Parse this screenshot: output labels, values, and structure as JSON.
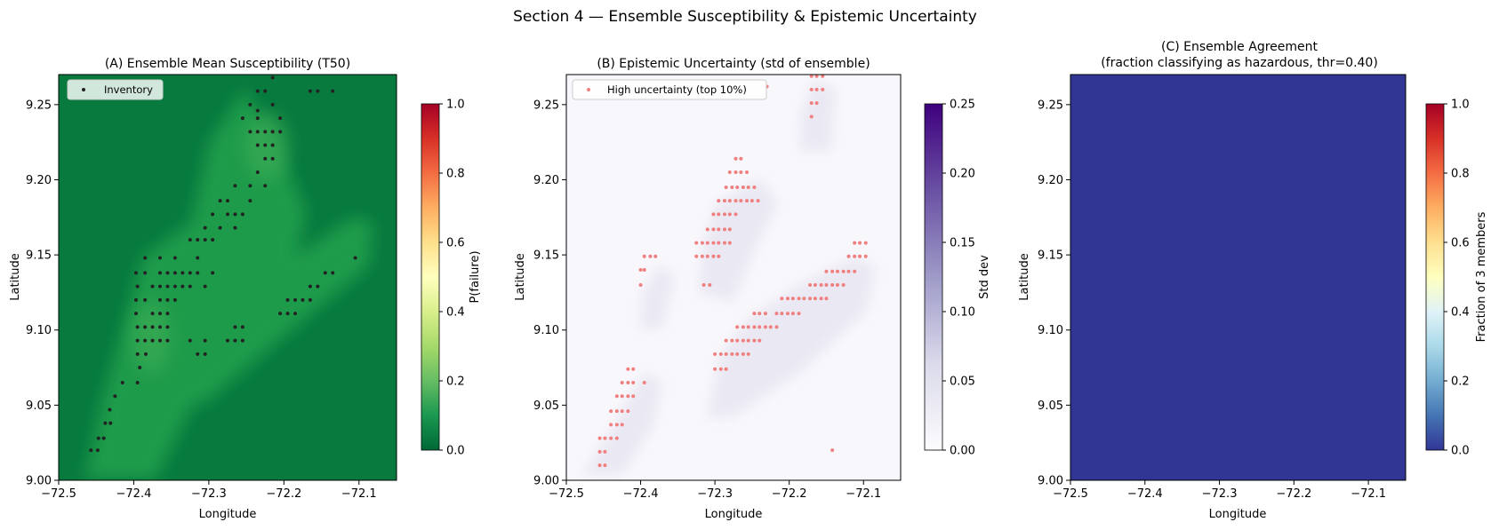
{
  "suptitle": "Section 4 — Ensemble Susceptibility & Epistemic Uncertainty",
  "chart_data": [
    {
      "panel": "A",
      "type": "heatmap",
      "title": "(A) Ensemble Mean Susceptibility (T50)",
      "xlabel": "Longitude",
      "ylabel": "Latitude",
      "xlim": [
        -72.5,
        -72.05
      ],
      "ylim": [
        9.0,
        9.27
      ],
      "xticks": [
        "−72.5",
        "−72.4",
        "−72.3",
        "−72.2",
        "−72.1"
      ],
      "xtick_values": [
        -72.5,
        -72.4,
        -72.3,
        -72.2,
        -72.1
      ],
      "yticks": [
        "9.00",
        "9.05",
        "9.10",
        "9.15",
        "9.20",
        "9.25"
      ],
      "ytick_values": [
        9.0,
        9.05,
        9.1,
        9.15,
        9.2,
        9.25
      ],
      "colormap": "RdYlGn_r",
      "colorbar": {
        "label": "P(failure)",
        "range": [
          0.0,
          1.0
        ],
        "ticks": [
          "0.0",
          "0.2",
          "0.4",
          "0.6",
          "0.8",
          "1.0"
        ]
      },
      "legend": {
        "label": "Inventory",
        "position": "top-left",
        "marker_color": "#222222"
      },
      "surface_range": [
        0.0,
        0.22
      ],
      "surface_description": "low susceptibility background with elevated ridges along NE-trending bands",
      "points_color": "#222222",
      "points": [
        [
          -72.457,
          9.02
        ],
        [
          -72.448,
          9.02
        ],
        [
          -72.447,
          9.028
        ],
        [
          -72.44,
          9.028
        ],
        [
          -72.438,
          9.038
        ],
        [
          -72.431,
          9.038
        ],
        [
          -72.432,
          9.047
        ],
        [
          -72.425,
          9.056
        ],
        [
          -72.415,
          9.065
        ],
        [
          -72.395,
          9.065
        ],
        [
          -72.392,
          9.075
        ],
        [
          -72.395,
          9.084
        ],
        [
          -72.384,
          9.084
        ],
        [
          -72.395,
          9.093
        ],
        [
          -72.385,
          9.093
        ],
        [
          -72.375,
          9.093
        ],
        [
          -72.365,
          9.093
        ],
        [
          -72.355,
          9.093
        ],
        [
          -72.395,
          9.102
        ],
        [
          -72.385,
          9.102
        ],
        [
          -72.375,
          9.102
        ],
        [
          -72.365,
          9.102
        ],
        [
          -72.355,
          9.102
        ],
        [
          -72.397,
          9.111
        ],
        [
          -72.375,
          9.111
        ],
        [
          -72.365,
          9.111
        ],
        [
          -72.355,
          9.111
        ],
        [
          -72.397,
          9.12
        ],
        [
          -72.385,
          9.12
        ],
        [
          -72.365,
          9.12
        ],
        [
          -72.355,
          9.12
        ],
        [
          -72.345,
          9.12
        ],
        [
          -72.395,
          9.129
        ],
        [
          -72.375,
          9.129
        ],
        [
          -72.365,
          9.129
        ],
        [
          -72.355,
          9.129
        ],
        [
          -72.345,
          9.129
        ],
        [
          -72.335,
          9.129
        ],
        [
          -72.325,
          9.129
        ],
        [
          -72.305,
          9.129
        ],
        [
          -72.397,
          9.138
        ],
        [
          -72.385,
          9.138
        ],
        [
          -72.365,
          9.138
        ],
        [
          -72.355,
          9.138
        ],
        [
          -72.345,
          9.138
        ],
        [
          -72.335,
          9.138
        ],
        [
          -72.325,
          9.138
        ],
        [
          -72.315,
          9.138
        ],
        [
          -72.295,
          9.138
        ],
        [
          -72.385,
          9.148
        ],
        [
          -72.365,
          9.148
        ],
        [
          -72.345,
          9.148
        ],
        [
          -72.315,
          9.148
        ],
        [
          -72.325,
          9.16
        ],
        [
          -72.315,
          9.16
        ],
        [
          -72.305,
          9.16
        ],
        [
          -72.295,
          9.16
        ],
        [
          -72.305,
          9.168
        ],
        [
          -72.285,
          9.168
        ],
        [
          -72.265,
          9.168
        ],
        [
          -72.295,
          9.177
        ],
        [
          -72.275,
          9.177
        ],
        [
          -72.265,
          9.177
        ],
        [
          -72.255,
          9.177
        ],
        [
          -72.285,
          9.186
        ],
        [
          -72.275,
          9.186
        ],
        [
          -72.245,
          9.186
        ],
        [
          -72.265,
          9.196
        ],
        [
          -72.245,
          9.196
        ],
        [
          -72.225,
          9.196
        ],
        [
          -72.235,
          9.205
        ],
        [
          -72.225,
          9.214
        ],
        [
          -72.215,
          9.214
        ],
        [
          -72.235,
          9.223
        ],
        [
          -72.225,
          9.223
        ],
        [
          -72.215,
          9.223
        ],
        [
          -72.245,
          9.232
        ],
        [
          -72.235,
          9.232
        ],
        [
          -72.225,
          9.232
        ],
        [
          -72.215,
          9.232
        ],
        [
          -72.205,
          9.232
        ],
        [
          -72.255,
          9.241
        ],
        [
          -72.235,
          9.241
        ],
        [
          -72.205,
          9.241
        ],
        [
          -72.245,
          9.25
        ],
        [
          -72.215,
          9.25
        ],
        [
          -72.235,
          9.259
        ],
        [
          -72.225,
          9.259
        ],
        [
          -72.165,
          9.259
        ],
        [
          -72.155,
          9.259
        ],
        [
          -72.135,
          9.259
        ],
        [
          -72.235,
          9.246
        ],
        [
          -72.215,
          9.268
        ],
        [
          -72.325,
          9.093
        ],
        [
          -72.305,
          9.093
        ],
        [
          -72.275,
          9.093
        ],
        [
          -72.265,
          9.093
        ],
        [
          -72.255,
          9.093
        ],
        [
          -72.265,
          9.102
        ],
        [
          -72.255,
          9.102
        ],
        [
          -72.315,
          9.084
        ],
        [
          -72.305,
          9.084
        ],
        [
          -72.205,
          9.111
        ],
        [
          -72.195,
          9.111
        ],
        [
          -72.185,
          9.111
        ],
        [
          -72.195,
          9.12
        ],
        [
          -72.185,
          9.12
        ],
        [
          -72.175,
          9.12
        ],
        [
          -72.165,
          9.12
        ],
        [
          -72.165,
          9.129
        ],
        [
          -72.155,
          9.129
        ],
        [
          -72.145,
          9.138
        ],
        [
          -72.135,
          9.138
        ],
        [
          -72.105,
          9.148
        ]
      ]
    },
    {
      "panel": "B",
      "type": "heatmap",
      "title": "(B) Epistemic Uncertainty (std of ensemble)",
      "xlabel": "Longitude",
      "ylabel": "Latitude",
      "xlim": [
        -72.5,
        -72.05
      ],
      "ylim": [
        9.0,
        9.27
      ],
      "xticks": [
        "−72.5",
        "−72.4",
        "−72.3",
        "−72.2",
        "−72.1"
      ],
      "xtick_values": [
        -72.5,
        -72.4,
        -72.3,
        -72.2,
        -72.1
      ],
      "yticks": [
        "9.00",
        "9.05",
        "9.10",
        "9.15",
        "9.20",
        "9.25"
      ],
      "ytick_values": [
        9.0,
        9.05,
        9.1,
        9.15,
        9.2,
        9.25
      ],
      "colormap": "Purples",
      "colorbar": {
        "label": "Std dev",
        "range": [
          0.0,
          0.25
        ],
        "ticks": [
          "0.00",
          "0.05",
          "0.10",
          "0.15",
          "0.20",
          "0.25"
        ]
      },
      "legend": {
        "label": "High uncertainty (top 10%)",
        "position": "top-left",
        "marker_color": "#f08080"
      },
      "surface_range": [
        0.0,
        0.025
      ],
      "points_color": "#f08080",
      "points": [
        [
          -72.455,
          9.01
        ],
        [
          -72.448,
          9.01
        ],
        [
          -72.455,
          9.019
        ],
        [
          -72.448,
          9.019
        ],
        [
          -72.455,
          9.028
        ],
        [
          -72.448,
          9.028
        ],
        [
          -72.44,
          9.028
        ],
        [
          -72.432,
          9.028
        ],
        [
          -72.44,
          9.037
        ],
        [
          -72.432,
          9.037
        ],
        [
          -72.425,
          9.037
        ],
        [
          -72.44,
          9.046
        ],
        [
          -72.432,
          9.046
        ],
        [
          -72.425,
          9.046
        ],
        [
          -72.417,
          9.046
        ],
        [
          -72.432,
          9.056
        ],
        [
          -72.425,
          9.056
        ],
        [
          -72.417,
          9.056
        ],
        [
          -72.41,
          9.056
        ],
        [
          -72.425,
          9.065
        ],
        [
          -72.417,
          9.065
        ],
        [
          -72.41,
          9.065
        ],
        [
          -72.395,
          9.065
        ],
        [
          -72.417,
          9.074
        ],
        [
          -72.41,
          9.074
        ],
        [
          -72.4,
          9.13
        ],
        [
          -72.4,
          9.14
        ],
        [
          -72.395,
          9.14
        ],
        [
          -72.395,
          9.149
        ],
        [
          -72.387,
          9.149
        ],
        [
          -72.38,
          9.149
        ],
        [
          -72.3,
          9.074
        ],
        [
          -72.292,
          9.074
        ],
        [
          -72.285,
          9.074
        ],
        [
          -72.3,
          9.084
        ],
        [
          -72.292,
          9.084
        ],
        [
          -72.285,
          9.084
        ],
        [
          -72.277,
          9.084
        ],
        [
          -72.27,
          9.084
        ],
        [
          -72.262,
          9.084
        ],
        [
          -72.255,
          9.084
        ],
        [
          -72.285,
          9.093
        ],
        [
          -72.277,
          9.093
        ],
        [
          -72.27,
          9.093
        ],
        [
          -72.262,
          9.093
        ],
        [
          -72.255,
          9.093
        ],
        [
          -72.247,
          9.093
        ],
        [
          -72.24,
          9.093
        ],
        [
          -72.27,
          9.102
        ],
        [
          -72.262,
          9.102
        ],
        [
          -72.255,
          9.102
        ],
        [
          -72.247,
          9.102
        ],
        [
          -72.24,
          9.102
        ],
        [
          -72.232,
          9.102
        ],
        [
          -72.225,
          9.102
        ],
        [
          -72.217,
          9.102
        ],
        [
          -72.247,
          9.111
        ],
        [
          -72.24,
          9.111
        ],
        [
          -72.232,
          9.111
        ],
        [
          -72.217,
          9.111
        ],
        [
          -72.21,
          9.111
        ],
        [
          -72.202,
          9.111
        ],
        [
          -72.195,
          9.111
        ],
        [
          -72.187,
          9.111
        ],
        [
          -72.21,
          9.121
        ],
        [
          -72.202,
          9.121
        ],
        [
          -72.195,
          9.121
        ],
        [
          -72.187,
          9.121
        ],
        [
          -72.18,
          9.121
        ],
        [
          -72.172,
          9.121
        ],
        [
          -72.165,
          9.121
        ],
        [
          -72.157,
          9.121
        ],
        [
          -72.15,
          9.121
        ],
        [
          -72.172,
          9.13
        ],
        [
          -72.165,
          9.13
        ],
        [
          -72.157,
          9.13
        ],
        [
          -72.15,
          9.13
        ],
        [
          -72.142,
          9.13
        ],
        [
          -72.135,
          9.13
        ],
        [
          -72.127,
          9.13
        ],
        [
          -72.15,
          9.139
        ],
        [
          -72.142,
          9.139
        ],
        [
          -72.135,
          9.139
        ],
        [
          -72.127,
          9.139
        ],
        [
          -72.12,
          9.139
        ],
        [
          -72.112,
          9.139
        ],
        [
          -72.12,
          9.149
        ],
        [
          -72.112,
          9.149
        ],
        [
          -72.105,
          9.149
        ],
        [
          -72.097,
          9.149
        ],
        [
          -72.112,
          9.158
        ],
        [
          -72.105,
          9.158
        ],
        [
          -72.097,
          9.158
        ],
        [
          -72.315,
          9.13
        ],
        [
          -72.307,
          9.13
        ],
        [
          -72.325,
          9.149
        ],
        [
          -72.317,
          9.149
        ],
        [
          -72.31,
          9.149
        ],
        [
          -72.302,
          9.149
        ],
        [
          -72.295,
          9.149
        ],
        [
          -72.325,
          9.158
        ],
        [
          -72.317,
          9.158
        ],
        [
          -72.31,
          9.158
        ],
        [
          -72.302,
          9.158
        ],
        [
          -72.295,
          9.158
        ],
        [
          -72.287,
          9.158
        ],
        [
          -72.28,
          9.158
        ],
        [
          -72.31,
          9.167
        ],
        [
          -72.302,
          9.167
        ],
        [
          -72.295,
          9.167
        ],
        [
          -72.287,
          9.167
        ],
        [
          -72.28,
          9.167
        ],
        [
          -72.302,
          9.177
        ],
        [
          -72.295,
          9.177
        ],
        [
          -72.287,
          9.177
        ],
        [
          -72.28,
          9.177
        ],
        [
          -72.272,
          9.177
        ],
        [
          -72.295,
          9.186
        ],
        [
          -72.287,
          9.186
        ],
        [
          -72.28,
          9.186
        ],
        [
          -72.272,
          9.186
        ],
        [
          -72.265,
          9.186
        ],
        [
          -72.257,
          9.186
        ],
        [
          -72.25,
          9.186
        ],
        [
          -72.242,
          9.186
        ],
        [
          -72.285,
          9.195
        ],
        [
          -72.277,
          9.195
        ],
        [
          -72.27,
          9.195
        ],
        [
          -72.262,
          9.195
        ],
        [
          -72.255,
          9.195
        ],
        [
          -72.247,
          9.195
        ],
        [
          -72.28,
          9.205
        ],
        [
          -72.272,
          9.205
        ],
        [
          -72.265,
          9.205
        ],
        [
          -72.257,
          9.205
        ],
        [
          -72.272,
          9.214
        ],
        [
          -72.265,
          9.214
        ],
        [
          -72.17,
          9.242
        ],
        [
          -72.17,
          9.251
        ],
        [
          -72.163,
          9.251
        ],
        [
          -72.17,
          9.26
        ],
        [
          -72.163,
          9.26
        ],
        [
          -72.155,
          9.26
        ],
        [
          -72.17,
          9.269
        ],
        [
          -72.163,
          9.269
        ],
        [
          -72.155,
          9.269
        ],
        [
          -72.23,
          9.262
        ],
        [
          -72.142,
          9.02
        ]
      ]
    },
    {
      "panel": "C",
      "type": "heatmap",
      "title": "(C) Ensemble Agreement\n(fraction classifying as hazardous, thr=0.40)",
      "title_line1": "(C) Ensemble Agreement",
      "title_line2": "(fraction classifying as hazardous, thr=0.40)",
      "xlabel": "Longitude",
      "ylabel": "Latitude",
      "xlim": [
        -72.5,
        -72.05
      ],
      "ylim": [
        9.0,
        9.27
      ],
      "xticks": [
        "−72.5",
        "−72.4",
        "−72.3",
        "−72.2",
        "−72.1"
      ],
      "xtick_values": [
        -72.5,
        -72.4,
        -72.3,
        -72.2,
        -72.1
      ],
      "yticks": [
        "9.00",
        "9.05",
        "9.10",
        "9.15",
        "9.20",
        "9.25"
      ],
      "ytick_values": [
        9.0,
        9.05,
        9.1,
        9.15,
        9.2,
        9.25
      ],
      "colormap": "RdYlBu_r",
      "colorbar": {
        "label": "Fraction of 3 members",
        "range": [
          0.0,
          1.0
        ],
        "ticks": [
          "0.0",
          "0.2",
          "0.4",
          "0.6",
          "0.8",
          "1.0"
        ]
      },
      "surface_value": 0.0,
      "surface_color": "#313695"
    }
  ]
}
